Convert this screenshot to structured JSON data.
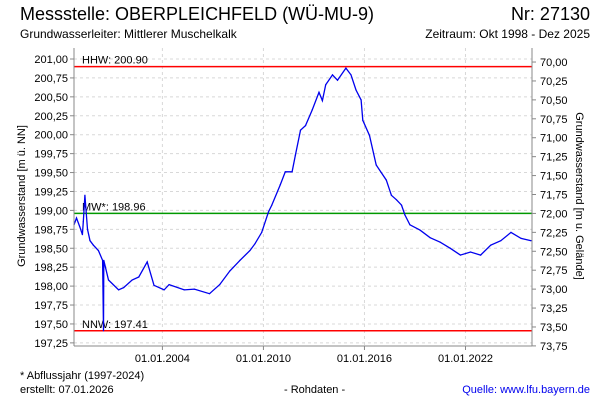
{
  "header": {
    "title": "Messstelle: OBERPLEICHFELD (WÜ-MU-9)",
    "number": "Nr: 27130",
    "aquifer": "Grundwasserleiter:   Mittlerer Muschelkalk",
    "period": "Zeitraum: Okt 1998 - Dez 2025"
  },
  "footer": {
    "note": "* Abflussjahr (1997-2024)",
    "created": "erstellt:  07.01.2026",
    "raw": "- Rohdaten -",
    "source": "Quelle: www.lfu.bayern.de"
  },
  "chart_data": {
    "type": "line",
    "ylabel": "Grundwasserstand [m ü. NN]",
    "ylabel_right": "Grundwasserstand [m u. Gelände]",
    "xlim": [
      1998.75,
      2025.95
    ],
    "ylim": [
      197.15,
      201.15
    ],
    "yticks": [
      "201,00",
      "200,75",
      "200,50",
      "200,25",
      "200,00",
      "199,75",
      "199,50",
      "199,25",
      "199,00",
      "198,75",
      "198,50",
      "198,25",
      "198,00",
      "197,75",
      "197,50",
      "197,25"
    ],
    "ytick_values": [
      201.0,
      200.75,
      200.5,
      200.25,
      200.0,
      199.75,
      199.5,
      199.25,
      199.0,
      198.75,
      198.5,
      198.25,
      198.0,
      197.75,
      197.5,
      197.25
    ],
    "ground_level": 270.96,
    "yticks_right": [
      "70,00",
      "70,25",
      "70,50",
      "70,75",
      "71,00",
      "71,25",
      "71,50",
      "71,75",
      "72,00",
      "72,25",
      "72,50",
      "72,75",
      "73,00",
      "73,25",
      "73,50",
      "73,75"
    ],
    "ytick_right_values": [
      70.0,
      70.25,
      70.5,
      70.75,
      71.0,
      71.25,
      71.5,
      71.75,
      72.0,
      72.25,
      72.5,
      72.75,
      73.0,
      73.25,
      73.5,
      73.75
    ],
    "xticks": [
      "01.01.2004",
      "01.01.2010",
      "01.01.2016",
      "01.01.2022"
    ],
    "xtick_values": [
      2004,
      2010,
      2016,
      2022
    ],
    "reference_lines": [
      {
        "label": "HHW: 200.90",
        "value": 200.9,
        "color": "#ff0000"
      },
      {
        "label": "MW*: 198.96",
        "value": 198.96,
        "color": "#009900"
      },
      {
        "label": "NNW: 197.41",
        "value": 197.41,
        "color": "#ff0000"
      }
    ],
    "series": [
      {
        "name": "Grundwasserstand",
        "color": "#0000ee",
        "x": [
          1998.75,
          1998.9,
          1999.1,
          1999.25,
          1999.3,
          1999.4,
          1999.55,
          1999.7,
          1999.9,
          2000.2,
          2000.45,
          2000.5,
          2000.52,
          2000.8,
          2001.4,
          2001.7,
          2002.2,
          2002.6,
          2003.1,
          2003.5,
          2004.1,
          2004.4,
          2005.3,
          2005.9,
          2006.8,
          2007.4,
          2008.0,
          2008.6,
          2009.2,
          2009.5,
          2009.9,
          2010.3,
          2010.5,
          2011.0,
          2011.3,
          2011.7,
          2011.9,
          2012.2,
          2012.5,
          2012.9,
          2013.3,
          2013.5,
          2013.7,
          2014.1,
          2014.4,
          2014.9,
          2015.2,
          2015.5,
          2015.8,
          2015.9,
          2016.3,
          2016.7,
          2017.3,
          2017.6,
          2017.9,
          2018.2,
          2018.4,
          2018.7,
          2019.3,
          2019.9,
          2020.5,
          2021.1,
          2021.7,
          2022.3,
          2022.9,
          2023.5,
          2024.1,
          2024.7,
          2025.3,
          2025.9
        ],
        "y": [
          198.81,
          198.9,
          198.78,
          198.68,
          198.85,
          199.2,
          198.75,
          198.6,
          198.54,
          198.47,
          198.34,
          197.41,
          198.34,
          198.08,
          197.95,
          197.98,
          198.08,
          198.12,
          198.32,
          198.01,
          197.95,
          198.02,
          197.95,
          197.96,
          197.9,
          198.02,
          198.2,
          198.34,
          198.47,
          198.56,
          198.71,
          198.98,
          199.07,
          199.34,
          199.51,
          199.51,
          199.73,
          200.06,
          200.12,
          200.33,
          200.56,
          200.45,
          200.66,
          200.79,
          200.72,
          200.88,
          200.79,
          200.59,
          200.46,
          200.19,
          199.99,
          199.6,
          199.4,
          199.2,
          199.14,
          199.07,
          198.94,
          198.81,
          198.74,
          198.64,
          198.58,
          198.5,
          198.41,
          198.45,
          198.41,
          198.54,
          198.6,
          198.71,
          198.63,
          198.6
        ]
      }
    ]
  }
}
